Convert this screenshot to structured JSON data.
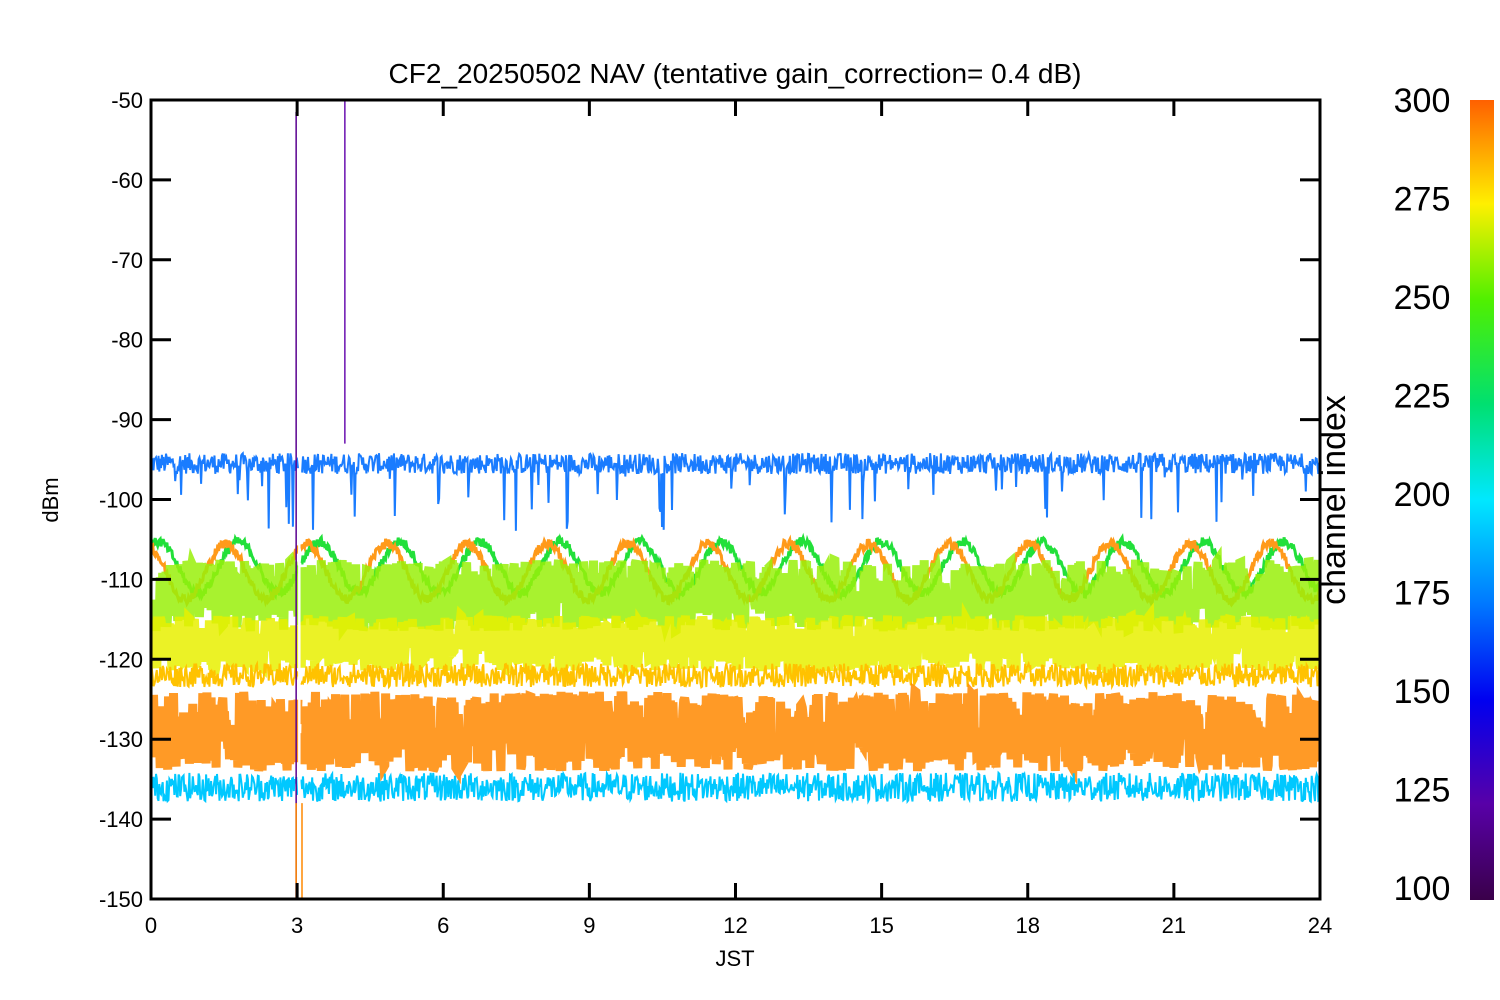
{
  "chart_data": {
    "type": "line",
    "title": "CF2_20250502 NAV (tentative gain_correction=  0.4 dB)",
    "xlabel": "JST",
    "ylabel": "dBm",
    "xlim": [
      0,
      24
    ],
    "ylim": [
      -150,
      -50
    ],
    "x_ticks": [
      "0",
      "3",
      "6",
      "9",
      "12",
      "15",
      "18",
      "21",
      "24"
    ],
    "y_ticks": [
      "-50",
      "-60",
      "-70",
      "-80",
      "-90",
      "-100",
      "-110",
      "-120",
      "-130",
      "-140",
      "-150"
    ],
    "grid": false,
    "colorbar": {
      "title": "channel index",
      "range": [
        100,
        300
      ],
      "ticks": [
        "300",
        "275",
        "250",
        "225",
        "200",
        "175",
        "150",
        "125",
        "100"
      ],
      "colormap": "rainbow"
    },
    "series": [
      {
        "channel": 150,
        "color": "#1a7cff",
        "level": -95.5,
        "spread": 1.3,
        "dips": 8
      },
      {
        "channel": 235,
        "color": "#22e03a",
        "level": -108.5,
        "spread": 0.6,
        "oscillation": 3.2
      },
      {
        "channel": 282,
        "color": "#ff9a1a",
        "level": -109,
        "spread": 0.6,
        "oscillation": 3.5
      },
      {
        "channel": 255,
        "color": "#99f00a",
        "level": -112,
        "spread": 4.5
      },
      {
        "channel": 270,
        "color": "#e8f000",
        "level": -118,
        "spread": 3.5
      },
      {
        "channel": 278,
        "color": "#ffc200",
        "level": -122,
        "spread": 1.5
      },
      {
        "channel": 292,
        "color": "#ff8800",
        "level": -129,
        "spread": 5
      },
      {
        "channel": 180,
        "color": "#00c8ff",
        "level": -136,
        "spread": 1.8
      }
    ],
    "spikes": [
      {
        "x": 2.98,
        "y_top": -51.5,
        "y_bottom": -150,
        "color": "#5a0090"
      },
      {
        "x": 3.98,
        "y_top": -50,
        "y_bottom": -93,
        "color": "#6a10b0"
      },
      {
        "x": 2.98,
        "y_top": -138,
        "y_bottom": -150,
        "color": "#ff8800"
      },
      {
        "x": 3.1,
        "y_top": -138,
        "y_bottom": -150,
        "color": "#ff8800"
      }
    ],
    "data_gap": {
      "x_start": 3.02,
      "x_end": 3.07
    }
  }
}
